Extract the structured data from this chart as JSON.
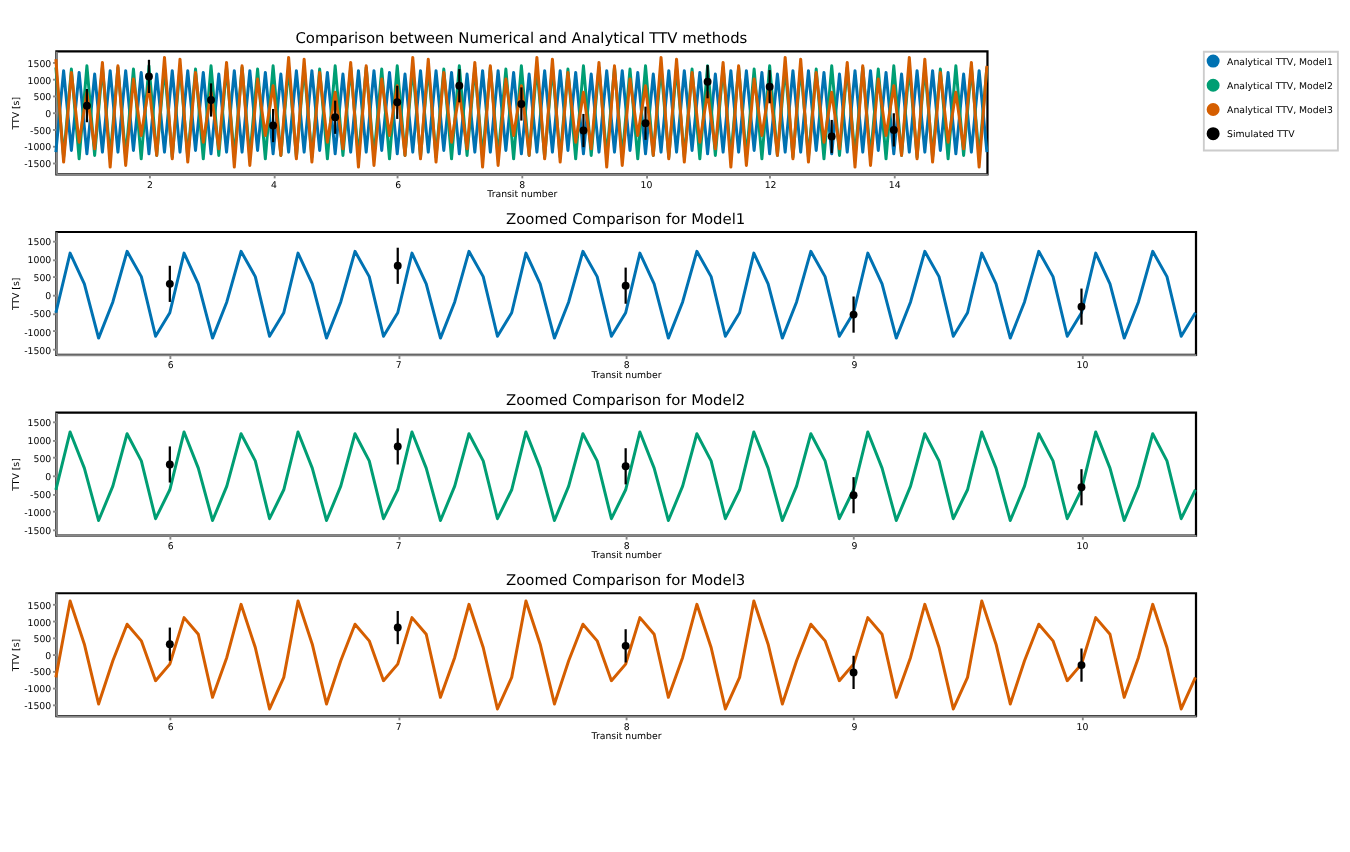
{
  "chart_data": [
    {
      "type": "line",
      "title": "Comparison between Numerical and Analytical TTV methods",
      "xlabel": "Transit number",
      "ylabel": "TTV [s]",
      "xlim": [
        0.5,
        15.5
      ],
      "xticks": [
        2,
        4,
        6,
        8,
        10,
        12,
        14
      ],
      "ylim": [
        -1850,
        1850
      ],
      "yticks": [
        -1500,
        -1000,
        -500,
        0,
        500,
        1000,
        1500
      ],
      "legend": "right",
      "x": [
        0.5,
        0.625,
        0.75,
        0.875,
        1,
        1.125,
        1.25,
        1.375,
        1.5,
        1.625,
        1.75,
        1.875,
        2,
        2.125,
        2.25,
        2.375,
        2.5,
        2.625,
        2.75,
        2.875,
        3,
        3.125,
        3.25,
        3.375,
        3.5,
        3.625,
        3.75,
        3.875,
        4,
        4.125,
        4.25,
        4.375,
        4.5,
        4.625,
        4.75,
        4.875,
        5,
        5.125,
        5.25,
        5.375,
        5.5,
        5.625,
        5.75,
        5.875,
        6,
        6.125,
        6.25,
        6.375,
        6.5,
        6.625,
        6.75,
        6.875,
        7,
        7.125,
        7.25,
        7.375,
        7.5,
        7.625,
        7.75,
        7.875,
        8,
        8.125,
        8.25,
        8.375,
        8.5,
        8.625,
        8.75,
        8.875,
        9,
        9.125,
        9.25,
        9.375,
        9.5,
        9.625,
        9.75,
        9.875,
        10,
        10.125,
        10.25,
        10.375,
        10.5,
        10.625,
        10.75,
        10.875,
        11,
        11.125,
        11.25,
        11.375,
        11.5,
        11.625,
        11.75,
        11.875,
        12,
        12.125,
        12.25,
        12.375,
        12.5,
        12.625,
        12.75,
        12.875,
        13,
        13.125,
        13.25,
        13.375,
        13.5,
        13.625,
        13.75,
        13.875,
        14,
        14.125,
        14.25,
        14.375,
        14.5,
        14.625,
        14.75,
        14.875,
        15,
        15.125,
        15.25,
        15.375,
        15.5
      ],
      "series": [
        {
          "name": "Analytical TTV, Model1",
          "color": "#0072b2",
          "values": [
            -1200,
            1250,
            -1150,
            1200,
            -1250,
            1150,
            -1200,
            1250,
            -1200,
            1250,
            -1150,
            1200,
            -1250,
            1150,
            -1200,
            1250,
            -1200,
            1250,
            -1150,
            1200,
            -1250,
            1150,
            -1200,
            1250,
            -1200,
            1250,
            -1150,
            1200,
            -1250,
            1150,
            -1200,
            1250,
            -1200,
            1250,
            -1150,
            1200,
            -1250,
            1150,
            -1200,
            1250,
            -1200,
            1250,
            -1150,
            1200,
            -1250,
            1150,
            -1200,
            1250,
            -1200,
            1250,
            -1150,
            1200,
            -1250,
            1150,
            -1200,
            1250,
            -1200,
            1250,
            -1150,
            1200,
            -1250,
            1150,
            -1200,
            1250,
            -1200,
            1250,
            -1150,
            1200,
            -1250,
            1150,
            -1200,
            1250,
            -1200,
            1250,
            -1150,
            1200,
            -1250,
            1150,
            -1200,
            1250,
            -1200,
            1250,
            -1150,
            1200,
            -1250,
            1150,
            -1200,
            1250,
            -1200,
            1250,
            -1150,
            1200,
            -1250,
            1150,
            -1200,
            1250,
            -1200,
            1250,
            -1150,
            1200,
            -1250,
            1150,
            -1200,
            1250,
            -1200,
            1250,
            -1150,
            1200,
            -1250,
            1150,
            -1200,
            1250,
            -1200,
            1250,
            -1150,
            1200,
            -1250,
            1150,
            -1200,
            1250,
            -1200
          ]
        },
        {
          "name": "Analytical TTV, Model2",
          "color": "#009e73",
          "values": [
            1350,
            -1350,
            1300,
            -1400,
            1400,
            -1300,
            1350,
            -1350,
            1350,
            -1350,
            1300,
            -1400,
            1400,
            -1300,
            1350,
            -1350,
            1350,
            -1350,
            1300,
            -1400,
            1400,
            -1300,
            1350,
            -1350,
            1350,
            -1350,
            1300,
            -1400,
            1400,
            -1300,
            1350,
            -1350,
            1350,
            -1350,
            1300,
            -1400,
            1400,
            -1300,
            1350,
            -1350,
            1350,
            -1350,
            1300,
            -1400,
            1400,
            -1300,
            1350,
            -1350,
            1350,
            -1350,
            1300,
            -1400,
            1400,
            -1300,
            1350,
            -1350,
            1350,
            -1350,
            1300,
            -1400,
            1400,
            -1300,
            1350,
            -1350,
            1350,
            -1350,
            1300,
            -1400,
            1400,
            -1300,
            1350,
            -1350,
            1350,
            -1350,
            1300,
            -1400,
            1400,
            -1300,
            1350,
            -1350,
            1350,
            -1350,
            1300,
            -1400,
            1400,
            -1300,
            1350,
            -1350,
            1350,
            -1350,
            1300,
            -1400,
            1400,
            -1300,
            1350,
            -1350,
            1350,
            -1350,
            1300,
            -1400,
            1400,
            -1300,
            1350,
            -1350,
            1350,
            -1350,
            1300,
            -1400,
            1400,
            -1300,
            1350,
            -1350,
            1350,
            -1350,
            1300,
            -1400,
            1400,
            -1300,
            1350,
            -1350,
            1350
          ]
        },
        {
          "name": "Analytical TTV, Model3",
          "color": "#d55e00",
          "values": [
            1600,
            -1500,
            1200,
            -900,
            600,
            -1100,
            1500,
            -1650,
            1400,
            -1600,
            1000,
            -700,
            800,
            -1300,
            1650,
            -1400,
            1600,
            -1500,
            1200,
            -900,
            600,
            -1100,
            1500,
            -1650,
            1400,
            -1600,
            1000,
            -700,
            800,
            -1300,
            1650,
            -1400,
            1600,
            -1500,
            1200,
            -900,
            600,
            -1100,
            1500,
            -1650,
            1400,
            -1600,
            1000,
            -700,
            800,
            -1300,
            1650,
            -1400,
            1600,
            -1500,
            1200,
            -900,
            600,
            -1100,
            1500,
            -1650,
            1400,
            -1600,
            1000,
            -700,
            800,
            -1300,
            1650,
            -1400,
            1600,
            -1500,
            1200,
            -900,
            600,
            -1100,
            1500,
            -1650,
            1400,
            -1600,
            1000,
            -700,
            800,
            -1300,
            1650,
            -1400,
            1600,
            -1500,
            1200,
            -900,
            600,
            -1100,
            1500,
            -1650,
            1400,
            -1600,
            1000,
            -700,
            800,
            -1300,
            1650,
            -1400,
            1600,
            -1500,
            1200,
            -900,
            600,
            -1100,
            1500,
            -1650,
            1400,
            -1600,
            1000,
            -700,
            800,
            -1300,
            1650,
            -1400,
            1600,
            -1500,
            1200,
            -900,
            600,
            -1100,
            1500,
            -1650,
            1400
          ]
        },
        {
          "name": "Simulated TTV",
          "type": "scatter",
          "marker": "circle",
          "color": "#000000",
          "x": [
            1,
            2,
            3,
            4,
            5,
            6,
            7,
            8,
            9,
            10,
            11,
            12,
            13,
            14
          ],
          "values": [
            200,
            1080,
            370,
            -400,
            -150,
            300,
            800,
            250,
            -550,
            -330,
            920,
            770,
            -730,
            -530
          ],
          "errors": [
            500,
            500,
            500,
            500,
            500,
            500,
            500,
            500,
            500,
            500,
            500,
            500,
            500,
            500
          ]
        }
      ]
    },
    {
      "type": "line",
      "title": "Zoomed Comparison for Model1",
      "xlabel": "Transit number",
      "ylabel": "TTV [s]",
      "xlim": [
        5.5,
        10.5
      ],
      "xticks": [
        6,
        7,
        8,
        9,
        10
      ],
      "ylim": [
        -1650,
        1750
      ],
      "yticks": [
        -1500,
        -1000,
        -500,
        0,
        500,
        1000,
        1500
      ],
      "x": [
        5.5,
        5.5625,
        5.625,
        5.6875,
        5.75,
        5.8125,
        5.875,
        5.9375,
        6,
        6.0625,
        6.125,
        6.1875,
        6.25,
        6.3125,
        6.375,
        6.4375,
        6.5,
        6.5625,
        6.625,
        6.6875,
        6.75,
        6.8125,
        6.875,
        6.9375,
        7,
        7.0625,
        7.125,
        7.1875,
        7.25,
        7.3125,
        7.375,
        7.4375,
        7.5,
        7.5625,
        7.625,
        7.6875,
        7.75,
        7.8125,
        7.875,
        7.9375,
        8,
        8.0625,
        8.125,
        8.1875,
        8.25,
        8.3125,
        8.375,
        8.4375,
        8.5,
        8.5625,
        8.625,
        8.6875,
        8.75,
        8.8125,
        8.875,
        8.9375,
        9,
        9.0625,
        9.125,
        9.1875,
        9.25,
        9.3125,
        9.375,
        9.4375,
        9.5,
        9.5625,
        9.625,
        9.6875,
        9.75,
        9.8125,
        9.875,
        9.9375,
        10,
        10.0625,
        10.125,
        10.1875,
        10.25,
        10.3125,
        10.375,
        10.4375,
        10.5
      ],
      "series": [
        {
          "color": "#0072b2",
          "values": [
            -500,
            1150,
            300,
            -1200,
            -200,
            1200,
            500,
            -1150,
            -500,
            1150,
            300,
            -1200,
            -200,
            1200,
            500,
            -1150,
            -500,
            1150,
            300,
            -1200,
            -200,
            1200,
            500,
            -1150,
            -500,
            1150,
            300,
            -1200,
            -200,
            1200,
            500,
            -1150,
            -500,
            1150,
            300,
            -1200,
            -200,
            1200,
            500,
            -1150,
            -500,
            1150,
            300,
            -1200,
            -200,
            1200,
            500,
            -1150,
            -500,
            1150,
            300,
            -1200,
            -200,
            1200,
            500,
            -1150,
            -500,
            1150,
            300,
            -1200,
            -200,
            1200,
            500,
            -1150,
            -500,
            1150,
            300,
            -1200,
            -200,
            1200,
            500,
            -1150,
            -500,
            1150,
            300,
            -1200,
            -200,
            1200,
            500,
            -1150,
            -500
          ]
        },
        {
          "type": "scatter",
          "marker": "circle",
          "color": "#000000",
          "x": [
            6,
            7,
            8,
            9,
            10
          ],
          "values": [
            300,
            800,
            250,
            -550,
            -330
          ],
          "errors": [
            500,
            500,
            500,
            500,
            500
          ]
        }
      ]
    },
    {
      "type": "line",
      "title": "Zoomed Comparison for Model2",
      "xlabel": "Transit number",
      "ylabel": "TTV [s]",
      "xlim": [
        5.5,
        10.5
      ],
      "xticks": [
        6,
        7,
        8,
        9,
        10
      ],
      "ylim": [
        -1650,
        1750
      ],
      "yticks": [
        -1500,
        -1000,
        -500,
        0,
        500,
        1000,
        1500
      ],
      "x": [
        5.5,
        5.5625,
        5.625,
        5.6875,
        5.75,
        5.8125,
        5.875,
        5.9375,
        6,
        6.0625,
        6.125,
        6.1875,
        6.25,
        6.3125,
        6.375,
        6.4375,
        6.5,
        6.5625,
        6.625,
        6.6875,
        6.75,
        6.8125,
        6.875,
        6.9375,
        7,
        7.0625,
        7.125,
        7.1875,
        7.25,
        7.3125,
        7.375,
        7.4375,
        7.5,
        7.5625,
        7.625,
        7.6875,
        7.75,
        7.8125,
        7.875,
        7.9375,
        8,
        8.0625,
        8.125,
        8.1875,
        8.25,
        8.3125,
        8.375,
        8.4375,
        8.5,
        8.5625,
        8.625,
        8.6875,
        8.75,
        8.8125,
        8.875,
        8.9375,
        9,
        9.0625,
        9.125,
        9.1875,
        9.25,
        9.3125,
        9.375,
        9.4375,
        9.5,
        9.5625,
        9.625,
        9.6875,
        9.75,
        9.8125,
        9.875,
        9.9375,
        10,
        10.0625,
        10.125,
        10.1875,
        10.25,
        10.3125,
        10.375,
        10.4375,
        10.5
      ],
      "series": [
        {
          "color": "#009e73",
          "values": [
            -400,
            1200,
            200,
            -1250,
            -300,
            1150,
            400,
            -1200,
            -400,
            1200,
            200,
            -1250,
            -300,
            1150,
            400,
            -1200,
            -400,
            1200,
            200,
            -1250,
            -300,
            1150,
            400,
            -1200,
            -400,
            1200,
            200,
            -1250,
            -300,
            1150,
            400,
            -1200,
            -400,
            1200,
            200,
            -1250,
            -300,
            1150,
            400,
            -1200,
            -400,
            1200,
            200,
            -1250,
            -300,
            1150,
            400,
            -1200,
            -400,
            1200,
            200,
            -1250,
            -300,
            1150,
            400,
            -1200,
            -400,
            1200,
            200,
            -1250,
            -300,
            1150,
            400,
            -1200,
            -400,
            1200,
            200,
            -1250,
            -300,
            1150,
            400,
            -1200,
            -400,
            1200,
            200,
            -1250,
            -300,
            1150,
            400,
            -1200,
            -400
          ]
        },
        {
          "type": "scatter",
          "marker": "circle",
          "color": "#000000",
          "x": [
            6,
            7,
            8,
            9,
            10
          ],
          "values": [
            300,
            800,
            250,
            -550,
            -330
          ],
          "errors": [
            500,
            500,
            500,
            500,
            500
          ]
        }
      ]
    },
    {
      "type": "line",
      "title": "Zoomed Comparison for Model3",
      "xlabel": "Transit number",
      "ylabel": "TTV [s]",
      "xlim": [
        5.5,
        10.5
      ],
      "xticks": [
        6,
        7,
        8,
        9,
        10
      ],
      "ylim": [
        -1850,
        1850
      ],
      "yticks": [
        -1500,
        -1000,
        -500,
        0,
        500,
        1000,
        1500
      ],
      "x": [
        5.5,
        5.5625,
        5.625,
        5.6875,
        5.75,
        5.8125,
        5.875,
        5.9375,
        6,
        6.0625,
        6.125,
        6.1875,
        6.25,
        6.3125,
        6.375,
        6.4375,
        6.5,
        6.5625,
        6.625,
        6.6875,
        6.75,
        6.8125,
        6.875,
        6.9375,
        7,
        7.0625,
        7.125,
        7.1875,
        7.25,
        7.3125,
        7.375,
        7.4375,
        7.5,
        7.5625,
        7.625,
        7.6875,
        7.75,
        7.8125,
        7.875,
        7.9375,
        8,
        8.0625,
        8.125,
        8.1875,
        8.25,
        8.3125,
        8.375,
        8.4375,
        8.5,
        8.5625,
        8.625,
        8.6875,
        8.75,
        8.8125,
        8.875,
        8.9375,
        9,
        9.0625,
        9.125,
        9.1875,
        9.25,
        9.3125,
        9.375,
        9.4375,
        9.5,
        9.5625,
        9.625,
        9.6875,
        9.75,
        9.8125,
        9.875,
        9.9375,
        10,
        10.0625,
        10.125,
        10.1875,
        10.25,
        10.3125,
        10.375,
        10.4375,
        10.5
      ],
      "series": [
        {
          "color": "#d55e00",
          "values": [
            -700,
            1600,
            300,
            -1500,
            -200,
            900,
            400,
            -800,
            -300,
            1100,
            600,
            -1300,
            -100,
            1500,
            200,
            -1650,
            -700,
            1600,
            300,
            -1500,
            -200,
            900,
            400,
            -800,
            -300,
            1100,
            600,
            -1300,
            -100,
            1500,
            200,
            -1650,
            -700,
            1600,
            300,
            -1500,
            -200,
            900,
            400,
            -800,
            -300,
            1100,
            600,
            -1300,
            -100,
            1500,
            200,
            -1650,
            -700,
            1600,
            300,
            -1500,
            -200,
            900,
            400,
            -800,
            -300,
            1100,
            600,
            -1300,
            -100,
            1500,
            200,
            -1650,
            -700,
            1600,
            300,
            -1500,
            -200,
            900,
            400,
            -800,
            -300,
            1100,
            600,
            -1300,
            -100,
            1500,
            200,
            -1650,
            -700
          ]
        },
        {
          "type": "scatter",
          "marker": "circle",
          "color": "#000000",
          "x": [
            6,
            7,
            8,
            9,
            10
          ],
          "values": [
            300,
            800,
            250,
            -550,
            -330
          ],
          "errors": [
            500,
            500,
            500,
            500,
            500
          ]
        }
      ]
    }
  ]
}
